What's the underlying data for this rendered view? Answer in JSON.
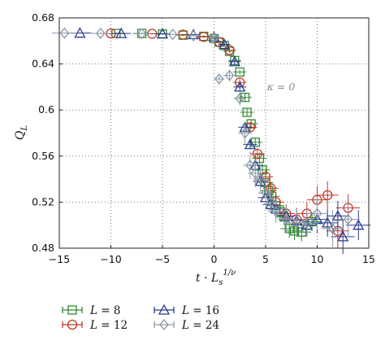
{
  "chart_data": {
    "type": "scatter",
    "title": "",
    "xlabel": "t · L_s^{1/ν}",
    "ylabel": "Q_L",
    "xlim": [
      -15,
      15
    ],
    "ylim": [
      0.48,
      0.68
    ],
    "xticks": [
      -15,
      -10,
      -5,
      0,
      5,
      10,
      15
    ],
    "xtick_labels": [
      "−15",
      "−10",
      "−5",
      "0",
      "5",
      "10",
      "15"
    ],
    "yticks": [
      0.48,
      0.52,
      0.56,
      0.6,
      0.64,
      0.68
    ],
    "ytick_labels": [
      "0.48",
      "0.52",
      "0.56",
      "0.6",
      "0.64",
      "0.68"
    ],
    "grid": "dotted",
    "legend_position": "bottom-left, below plot",
    "annotation": "κ = 0",
    "series": [
      {
        "name": "L = 8",
        "marker": "square",
        "color": "#2e8b2e",
        "points": [
          [
            -9.5,
            0.6665
          ],
          [
            -7,
            0.6665
          ],
          [
            -5,
            0.666
          ],
          [
            -3,
            0.665
          ],
          [
            -1,
            0.664
          ],
          [
            0,
            0.662
          ],
          [
            0.5,
            0.659
          ],
          [
            1,
            0.656
          ],
          [
            1.5,
            0.651
          ],
          [
            2,
            0.643
          ],
          [
            2.5,
            0.633
          ],
          [
            3,
            0.611
          ],
          [
            3.2,
            0.598
          ],
          [
            3.6,
            0.588
          ],
          [
            4,
            0.572
          ],
          [
            4.4,
            0.558
          ],
          [
            4.7,
            0.548
          ],
          [
            5,
            0.537
          ],
          [
            5.3,
            0.53
          ],
          [
            5.6,
            0.525
          ],
          [
            6,
            0.517
          ],
          [
            6.4,
            0.512
          ],
          [
            6.8,
            0.507
          ],
          [
            7.3,
            0.497
          ],
          [
            7.8,
            0.495
          ],
          [
            8.5,
            0.494
          ],
          [
            9.5,
            0.503
          ]
        ],
        "errors": [
          0.0005,
          0.0005,
          0.0005,
          0.0005,
          0.0008,
          0.001,
          0.001,
          0.001,
          0.0015,
          0.002,
          0.002,
          0.003,
          0.003,
          0.004,
          0.004,
          0.005,
          0.005,
          0.006,
          0.006,
          0.006,
          0.007,
          0.007,
          0.007,
          0.008,
          0.008,
          0.008,
          0.008
        ]
      },
      {
        "name": "L = 12",
        "marker": "circle",
        "color": "#c0392b",
        "points": [
          [
            -10,
            0.6665
          ],
          [
            -6,
            0.6662
          ],
          [
            -3,
            0.6655
          ],
          [
            -1,
            0.6635
          ],
          [
            0.5,
            0.659
          ],
          [
            1.5,
            0.652
          ],
          [
            2.5,
            0.624
          ],
          [
            3.5,
            0.585
          ],
          [
            4.2,
            0.562
          ],
          [
            5,
            0.542
          ],
          [
            5.5,
            0.532
          ],
          [
            6,
            0.52
          ],
          [
            7,
            0.51
          ],
          [
            8,
            0.505
          ],
          [
            9,
            0.51
          ],
          [
            10,
            0.522
          ],
          [
            11,
            0.526
          ],
          [
            12,
            0.495
          ],
          [
            13,
            0.515
          ]
        ],
        "errors": [
          0.0005,
          0.0005,
          0.0005,
          0.0008,
          0.001,
          0.0015,
          0.003,
          0.004,
          0.005,
          0.006,
          0.006,
          0.007,
          0.008,
          0.01,
          0.01,
          0.012,
          0.012,
          0.015,
          0.012
        ]
      },
      {
        "name": "L = 16",
        "marker": "triangle",
        "color": "#2a3a8f",
        "points": [
          [
            -13,
            0.6668
          ],
          [
            -9,
            0.6665
          ],
          [
            -5,
            0.6662
          ],
          [
            -2,
            0.6655
          ],
          [
            0,
            0.6635
          ],
          [
            1,
            0.657
          ],
          [
            2,
            0.642
          ],
          [
            2.5,
            0.62
          ],
          [
            3,
            0.585
          ],
          [
            3.5,
            0.57
          ],
          [
            4,
            0.552
          ],
          [
            4.5,
            0.538
          ],
          [
            5,
            0.524
          ],
          [
            5.5,
            0.518
          ],
          [
            6,
            0.514
          ],
          [
            7,
            0.508
          ],
          [
            8,
            0.504
          ],
          [
            9,
            0.5
          ],
          [
            10,
            0.505
          ],
          [
            11,
            0.502
          ],
          [
            12,
            0.508
          ],
          [
            12.5,
            0.49
          ],
          [
            14,
            0.5
          ]
        ],
        "errors": [
          0.0005,
          0.0005,
          0.0005,
          0.0005,
          0.001,
          0.0015,
          0.002,
          0.003,
          0.004,
          0.004,
          0.005,
          0.006,
          0.007,
          0.008,
          0.008,
          0.009,
          0.01,
          0.01,
          0.012,
          0.012,
          0.013,
          0.015,
          0.013
        ]
      },
      {
        "name": "L = 24",
        "marker": "diamond",
        "color": "#8a9aa8",
        "points": [
          [
            -14.5,
            0.6668
          ],
          [
            -11,
            0.6666
          ],
          [
            -7,
            0.6663
          ],
          [
            -4,
            0.6657
          ],
          [
            -2,
            0.6645
          ],
          [
            0,
            0.663
          ],
          [
            0.5,
            0.627
          ],
          [
            1.5,
            0.63
          ],
          [
            2.5,
            0.61
          ],
          [
            3,
            0.58
          ],
          [
            3.5,
            0.552
          ],
          [
            4,
            0.545
          ],
          [
            4.5,
            0.54
          ],
          [
            5,
            0.528
          ],
          [
            5.5,
            0.52
          ],
          [
            6,
            0.512
          ],
          [
            7,
            0.505
          ],
          [
            8,
            0.502
          ],
          [
            9,
            0.502
          ],
          [
            10,
            0.51
          ],
          [
            11.5,
            0.497
          ],
          [
            13,
            0.505
          ]
        ],
        "errors": [
          0.0005,
          0.0005,
          0.0005,
          0.0005,
          0.0008,
          0.001,
          0.003,
          0.005,
          0.006,
          0.01,
          0.012,
          0.012,
          0.012,
          0.01,
          0.01,
          0.01,
          0.012,
          0.012,
          0.012,
          0.014,
          0.016,
          0.015
        ]
      }
    ]
  }
}
